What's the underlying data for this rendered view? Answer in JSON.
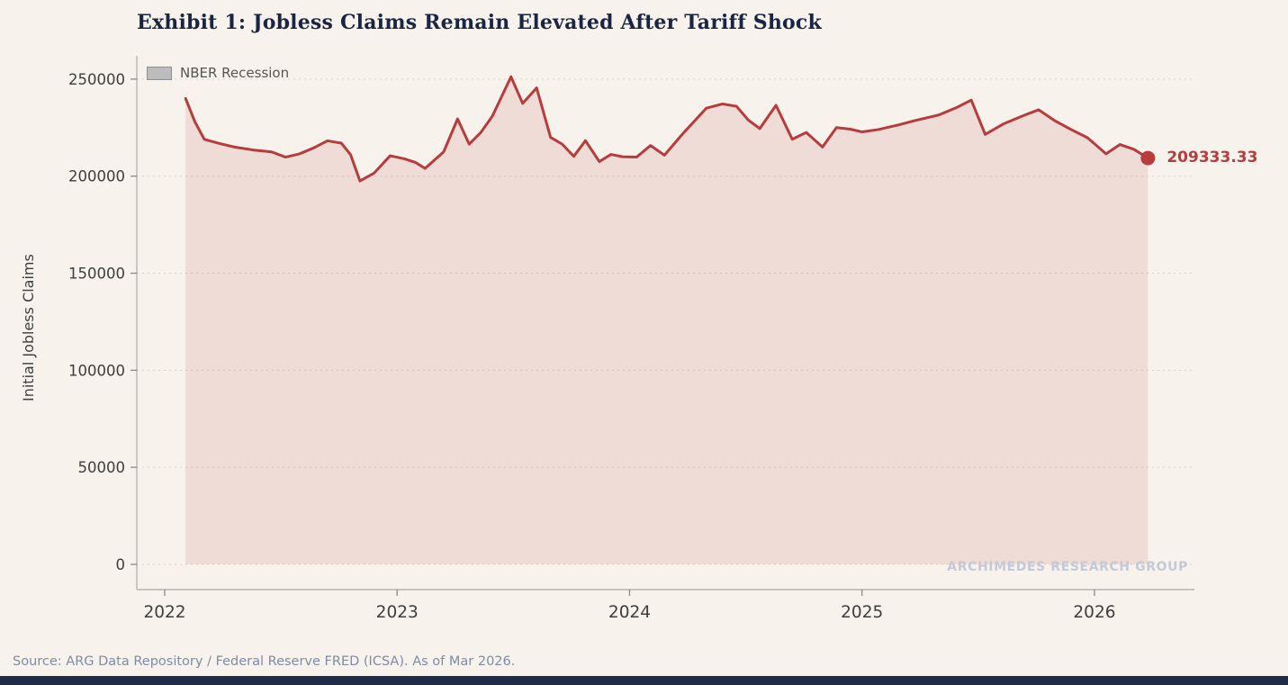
{
  "header": {
    "title": "Exhibit 1: Jobless Claims Remain Elevated After Tariff Shock"
  },
  "legend": {
    "items": [
      {
        "label": "NBER Recession",
        "swatch_color": "#bcbcbc"
      }
    ]
  },
  "watermark": "ARCHIMEDES RESEARCH GROUP",
  "footer": {
    "source": "Source: ARG Data Repository / Federal Reserve FRED (ICSA). As of Mar 2026."
  },
  "colors": {
    "background": "#f7f3ec",
    "title_navy": "#1a2545",
    "accent_red": "#b83c3c",
    "watermark_gray": "#c3c9d8",
    "source_slate": "#7e8ca6",
    "bottom_bar_navy": "#1f2b49"
  },
  "chart_data": {
    "type": "area",
    "title": "Exhibit 1: Jobless Claims Remain Elevated After Tariff Shock",
    "xlabel": "",
    "ylabel": "Initial Jobless Claims",
    "legend_entries": [
      "NBER Recession"
    ],
    "legend_position": "upper left",
    "grid": "horizontal-dotted",
    "xticks": [
      2022,
      2023,
      2024,
      2025,
      2026
    ],
    "yticks": [
      0,
      50000,
      100000,
      150000,
      200000,
      250000
    ],
    "xlim": [
      2021.88,
      2026.43
    ],
    "ylim": [
      -13000,
      262000
    ],
    "line_color": "#b83c3c",
    "fill_color": "rgba(184, 60, 60, 0.12)",
    "grid_color": "#dad3c9",
    "spine_color": "#b9b4ab",
    "tick_mark_color": "#8a8a8a",
    "tick_label_color": "#3d3d3d",
    "x": [
      2022.09,
      2022.13,
      2022.17,
      2022.23,
      2022.3,
      2022.38,
      2022.46,
      2022.52,
      2022.58,
      2022.64,
      2022.7,
      2022.76,
      2022.8,
      2022.84,
      2022.9,
      2022.97,
      2023.03,
      2023.08,
      2023.12,
      2023.2,
      2023.26,
      2023.31,
      2023.36,
      2023.41,
      2023.49,
      2023.54,
      2023.6,
      2023.66,
      2023.71,
      2023.76,
      2023.81,
      2023.87,
      2023.92,
      2023.97,
      2024.03,
      2024.09,
      2024.15,
      2024.23,
      2024.33,
      2024.4,
      2024.46,
      2024.51,
      2024.56,
      2024.63,
      2024.7,
      2024.76,
      2024.83,
      2024.89,
      2024.95,
      2025.0,
      2025.07,
      2025.16,
      2025.24,
      2025.33,
      2025.41,
      2025.47,
      2025.53,
      2025.61,
      2025.69,
      2025.76,
      2025.83,
      2025.9,
      2025.97,
      2026.05,
      2026.11,
      2026.17,
      2026.23
    ],
    "values": [
      240000,
      228000,
      219000,
      217000,
      215000,
      213500,
      212500,
      209800,
      211500,
      214500,
      218200,
      217000,
      211000,
      197500,
      201500,
      210500,
      209000,
      207000,
      204000,
      212500,
      229500,
      216500,
      222500,
      231000,
      251200,
      237500,
      245500,
      220000,
      216500,
      210200,
      218300,
      207500,
      211200,
      210000,
      209800,
      215800,
      210800,
      222000,
      235000,
      237200,
      236000,
      229000,
      224500,
      236500,
      219000,
      222500,
      215000,
      225000,
      224200,
      222800,
      224000,
      226500,
      229000,
      231500,
      235500,
      239200,
      221500,
      227000,
      231000,
      234200,
      228500,
      224000,
      219800,
      211500,
      216300,
      213800,
      209333.33
    ],
    "annotation": {
      "label": "209333.33",
      "x": 2026.23,
      "y": 209333.33
    }
  }
}
